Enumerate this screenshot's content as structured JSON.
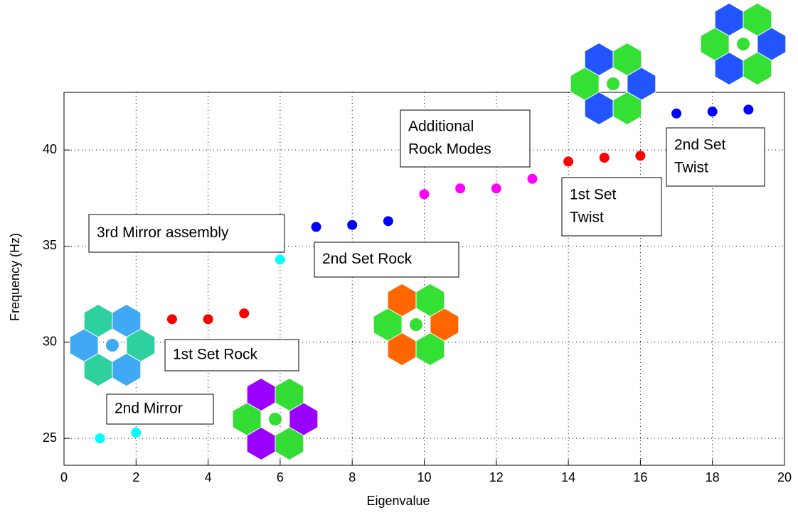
{
  "chart_data": {
    "type": "scatter",
    "xlabel": "Eigenvalue",
    "ylabel": "Frequency (Hz)",
    "xlim": [
      0,
      20
    ],
    "ylim": [
      23.6,
      43
    ],
    "xticks": [
      0,
      2,
      4,
      6,
      8,
      10,
      12,
      14,
      16,
      18,
      20
    ],
    "yticks": [
      25,
      30,
      35,
      40
    ],
    "grid": true,
    "series": [
      {
        "color": "#00ffff",
        "x": [
          1,
          2,
          6
        ],
        "values": [
          25.0,
          25.3,
          34.3
        ]
      },
      {
        "color": "#ff0000",
        "x": [
          3,
          4,
          5,
          14,
          15,
          16
        ],
        "values": [
          31.2,
          31.2,
          31.5,
          39.4,
          39.6,
          39.7
        ]
      },
      {
        "color": "#0000ff",
        "x": [
          7,
          8,
          9,
          17,
          18,
          19
        ],
        "values": [
          36.0,
          36.1,
          36.3,
          41.9,
          42.0,
          42.1
        ]
      },
      {
        "color": "#ff00ff",
        "x": [
          10,
          11,
          12,
          13
        ],
        "values": [
          37.7,
          38.0,
          38.0,
          38.5
        ]
      }
    ],
    "annotations": [
      {
        "lines": [
          "3rd Mirror assembly"
        ]
      },
      {
        "lines": [
          "2nd Set Rock"
        ]
      },
      {
        "lines": [
          "1st Set Rock"
        ]
      },
      {
        "lines": [
          "2nd Mirror"
        ]
      },
      {
        "lines": [
          "Additional",
          "Rock Modes"
        ]
      },
      {
        "lines": [
          "1st Set",
          "Twist"
        ]
      },
      {
        "lines": [
          "2nd Set",
          "Twist"
        ]
      }
    ]
  }
}
